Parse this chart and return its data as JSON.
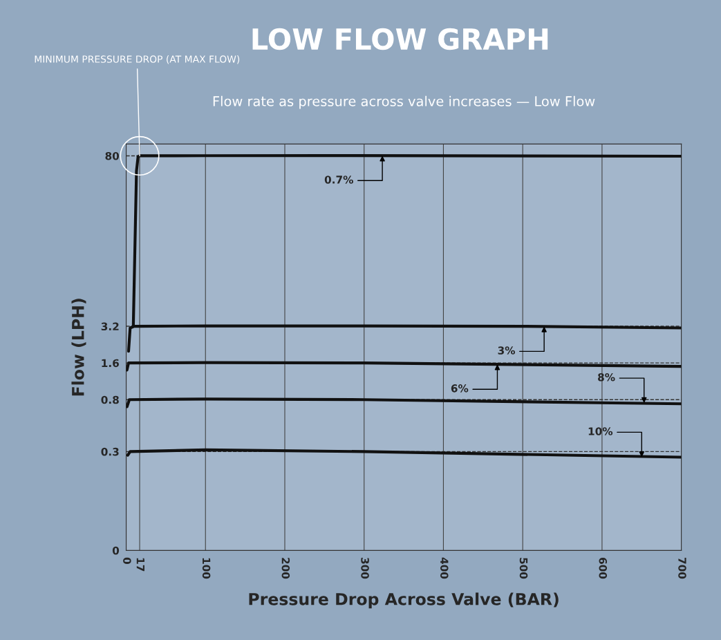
{
  "chart_data": {
    "type": "line",
    "title": "LOW FLOW GRAPH",
    "subtitle": "Flow rate as pressure across valve increases — Low Flow",
    "xlabel": "Pressure Drop Across Valve (BAR)",
    "ylabel": "Flow (LPH)",
    "series": [
      {
        "color": "#111111",
        "x": [
          9,
          13,
          15,
          17,
          100,
          250,
          400,
          700
        ],
        "values": [
          3.2,
          60,
          79,
          80,
          80.2,
          80.3,
          80.1,
          79.4
        ]
      },
      {
        "color": "#111111",
        "x": [
          3,
          5,
          10,
          100,
          300,
          500,
          700
        ],
        "values": [
          2,
          3.1,
          3.2,
          3.22,
          3.22,
          3.2,
          3.1
        ]
      },
      {
        "color": "#111111",
        "x": [
          1,
          3,
          100,
          300,
          700
        ],
        "values": [
          1.4,
          1.6,
          1.61,
          1.6,
          1.5
        ]
      },
      {
        "color": "#111111",
        "x": [
          1,
          4,
          100,
          300,
          700
        ],
        "values": [
          0.7,
          0.8,
          0.81,
          0.8,
          0.74
        ]
      },
      {
        "color": "#111111",
        "x": [
          2,
          5,
          100,
          300,
          700
        ],
        "values": [
          0.28,
          0.3,
          0.31,
          0.3,
          0.27
        ]
      }
    ],
    "xlim": [
      0,
      700
    ],
    "xticks": [
      0,
      17,
      100,
      200,
      300,
      400,
      500,
      600,
      700
    ],
    "ylim": [
      0,
      100
    ],
    "yticks": [
      0,
      0.3,
      0.8,
      1.6,
      3.2,
      80
    ],
    "log": "y",
    "grid": "x",
    "line_style": "solid",
    "marker": "none",
    "ref_lines": [
      {
        "axis": "y",
        "value": 80,
        "line_style": "dashed",
        "color": "#333333"
      },
      {
        "axis": "y",
        "value": 3.2,
        "line_style": "dashed",
        "color": "#333333"
      },
      {
        "axis": "y",
        "value": 1.6,
        "line_style": "dashed",
        "color": "#333333"
      },
      {
        "axis": "y",
        "value": 0.8,
        "line_style": "dashed",
        "color": "#333333"
      },
      {
        "axis": "y",
        "value": 0.3,
        "line_style": "dashed",
        "color": "#333333"
      }
    ],
    "annotations": [
      {
        "text": "MINIMUM PRESSURE DROP (AT MAX FLOW)",
        "x": 17,
        "y": 80
      },
      {
        "text": "0.7%",
        "x": 323,
        "y": 80.3
      },
      {
        "text": "3%",
        "x": 527,
        "y": 3.19
      },
      {
        "text": "6%",
        "x": 468,
        "y": 1.56
      },
      {
        "text": "8%",
        "x": 653,
        "y": 0.75
      },
      {
        "text": "10%",
        "x": 650,
        "y": 0.27
      }
    ]
  }
}
